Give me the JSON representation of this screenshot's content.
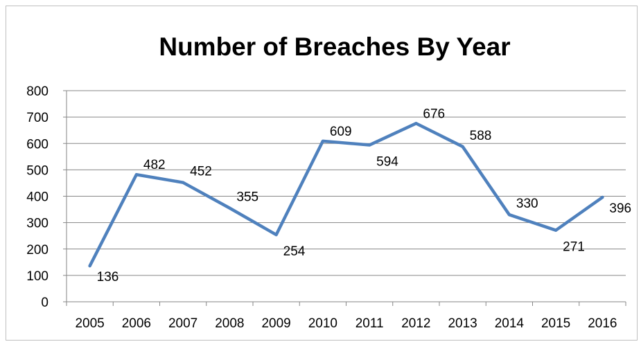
{
  "chart_data": {
    "type": "line",
    "title": "Number of Breaches By Year",
    "xlabel": "",
    "ylabel": "",
    "categories": [
      "2005",
      "2006",
      "2007",
      "2008",
      "2009",
      "2010",
      "2011",
      "2012",
      "2013",
      "2014",
      "2015",
      "2016"
    ],
    "series": [
      {
        "values": [
          136,
          482,
          452,
          355,
          254,
          609,
          594,
          676,
          588,
          330,
          271,
          396
        ],
        "data_labels": [
          "136",
          "482",
          "452",
          "355",
          "254",
          "609",
          "594",
          "676",
          "588",
          "330",
          "271",
          "396"
        ]
      }
    ],
    "ylim": [
      0,
      800
    ],
    "y_ticks": [
      "0",
      "100",
      "200",
      "300",
      "400",
      "500",
      "600",
      "700",
      "800"
    ],
    "grid": "horizontal",
    "legend": "none",
    "line_color": "#4f81bd",
    "grid_color": "#868686"
  }
}
